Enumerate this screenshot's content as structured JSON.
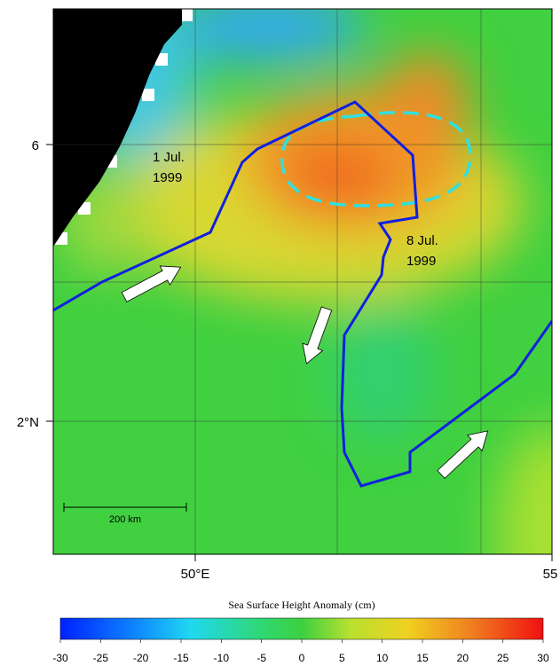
{
  "map": {
    "y_labels": [
      "6",
      "2°N"
    ],
    "x_labels": [
      "50°E",
      "55"
    ],
    "annotations": [
      [
        "1 Jul.",
        "1999"
      ],
      [
        "8 Jul.",
        "1999"
      ]
    ],
    "scale_bar": "200 km",
    "colorbar": {
      "title": "Sea Surface Height Anomaly (cm)",
      "clim": [
        -30,
        30
      ],
      "ticks": [
        -30,
        -25,
        -20,
        -15,
        -10,
        -5,
        0,
        5,
        10,
        15,
        20,
        25,
        30
      ]
    }
  }
}
